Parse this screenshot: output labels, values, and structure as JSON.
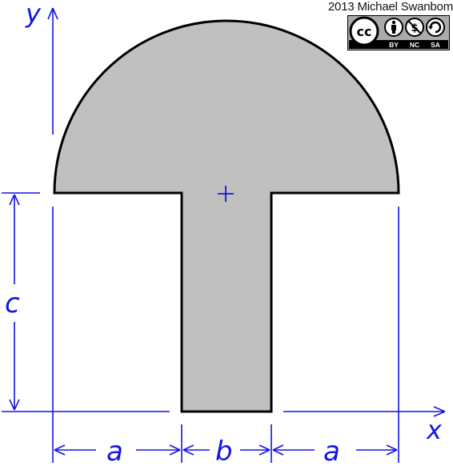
{
  "credit": {
    "text": "2013 Michael Swanbom"
  },
  "license": {
    "logo_text": "cc",
    "badges": [
      "BY",
      "NC",
      "SA"
    ]
  },
  "axes": {
    "x_label": "x",
    "y_label": "y"
  },
  "dimensions": {
    "left": "a",
    "middle": "b",
    "right": "a",
    "height": "c"
  },
  "colors": {
    "shape_fill": "#c0c0c0",
    "shape_stroke": "#000000",
    "annotation": "#1414e6",
    "background": "#ffffff"
  },
  "centroid_marker": "+"
}
